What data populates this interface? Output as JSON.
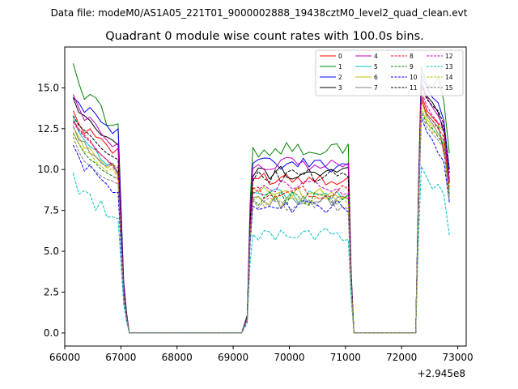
{
  "suptitle": "Data file: modeM0/AS1A05_221T01_9000002888_19438cztM0_level2_quad_clean.evt",
  "chart_data": {
    "type": "line",
    "title": "Quadrant 0 module wise count rates with 100.0s bins.",
    "xlabel": "",
    "ylabel": "",
    "x_offset_label": "+2.945e8",
    "xlim": [
      66000,
      73150
    ],
    "ylim": [
      -0.8,
      17.5
    ],
    "xticks": [
      66000,
      67000,
      68000,
      69000,
      70000,
      71000,
      72000,
      73000
    ],
    "yticks": [
      0.0,
      2.5,
      5.0,
      7.5,
      10.0,
      12.5,
      15.0
    ],
    "ytick_labels": [
      "0.0",
      "2.5",
      "5.0",
      "7.5",
      "10.0",
      "12.5",
      "15.0"
    ],
    "x": [
      66150,
      66250,
      66350,
      66450,
      66550,
      66650,
      66750,
      66850,
      66950,
      67050,
      67100,
      67150,
      67250,
      67350,
      67450,
      67550,
      67650,
      67750,
      67850,
      67950,
      68050,
      68150,
      68250,
      68350,
      68450,
      68550,
      68650,
      68750,
      68850,
      68950,
      69050,
      69150,
      69250,
      69300,
      69350,
      69450,
      69550,
      69650,
      69750,
      69850,
      69950,
      70050,
      70150,
      70250,
      70350,
      70450,
      70550,
      70650,
      70750,
      70850,
      70950,
      71050,
      71100,
      71150,
      71250,
      71350,
      71450,
      71550,
      71650,
      71750,
      71850,
      71950,
      72050,
      72150,
      72250,
      72300,
      72350,
      72450,
      72550,
      72650,
      72750,
      72850
    ],
    "legend_position": "top-right",
    "series": [
      {
        "name": "0",
        "color": "#ff0000",
        "dash": "solid",
        "base": [
          13.6,
          12.8,
          12.2,
          12.5,
          12.0,
          11.9,
          11.5,
          11.0,
          11.3
        ],
        "mid": 9.5,
        "end": [
          14.6,
          13.6,
          13.2,
          12.8,
          11.0,
          9.5
        ]
      },
      {
        "name": "1",
        "color": "#008000",
        "dash": "solid",
        "base": [
          16.5,
          15.3,
          14.3,
          14.6,
          14.4,
          13.9,
          12.7,
          12.7,
          12.8
        ],
        "mid": 11.2,
        "end": [
          16.3,
          15.2,
          15.0,
          15.7,
          14.2,
          11.0
        ]
      },
      {
        "name": "2",
        "color": "#0000ff",
        "dash": "solid",
        "base": [
          14.4,
          14.1,
          13.5,
          13.8,
          13.4,
          12.9,
          12.7,
          12.2,
          12.5
        ],
        "mid": 10.3,
        "end": [
          15.8,
          15.0,
          14.4,
          14.1,
          13.0,
          10.0
        ]
      },
      {
        "name": "3",
        "color": "#000000",
        "dash": "solid",
        "base": [
          14.4,
          13.5,
          13.3,
          13.0,
          12.5,
          12.1,
          12.0,
          11.8,
          11.5
        ],
        "mid": 9.8,
        "end": [
          15.2,
          14.5,
          14.1,
          13.5,
          12.3,
          9.2
        ]
      },
      {
        "name": "4",
        "color": "#c000c0",
        "dash": "solid",
        "base": [
          14.6,
          13.8,
          13.0,
          13.2,
          12.8,
          12.2,
          11.8,
          11.4,
          11.6
        ],
        "mid": 10.3,
        "end": [
          15.5,
          14.4,
          13.8,
          13.3,
          12.6,
          9.3
        ]
      },
      {
        "name": "5",
        "color": "#00c0c0",
        "dash": "solid",
        "base": [
          13.2,
          12.3,
          11.8,
          11.4,
          11.2,
          10.6,
          10.3,
          10.4,
          9.8
        ],
        "mid": 8.4,
        "end": [
          14.2,
          13.4,
          13.0,
          12.6,
          11.4,
          8.7
        ]
      },
      {
        "name": "6",
        "color": "#c0c000",
        "dash": "solid",
        "base": [
          12.6,
          12.0,
          11.3,
          11.3,
          10.8,
          10.5,
          10.1,
          10.3,
          9.6
        ],
        "mid": 8.5,
        "end": [
          14.3,
          13.1,
          12.6,
          12.7,
          12.3,
          8.1
        ]
      },
      {
        "name": "7",
        "color": "#808080",
        "dash": "solid",
        "base": [
          12.7,
          11.8,
          11.7,
          11.0,
          10.8,
          10.4,
          10.2,
          10.4,
          9.7
        ],
        "mid": 8.0,
        "end": [
          14.4,
          13.3,
          12.8,
          12.2,
          11.8,
          8.4
        ]
      },
      {
        "name": "8",
        "color": "#ff0000",
        "dash": "dashed",
        "base": [
          13.0,
          12.5,
          12.1,
          11.8,
          11.2,
          10.9,
          10.6,
          10.3,
          10.1
        ],
        "mid": 8.6,
        "end": [
          14.3,
          13.4,
          13.0,
          12.5,
          12.0,
          8.9
        ]
      },
      {
        "name": "9",
        "color": "#008000",
        "dash": "dashed",
        "base": [
          12.2,
          11.6,
          11.0,
          10.6,
          10.4,
          10.0,
          9.8,
          9.6,
          9.4
        ],
        "mid": 8.2,
        "end": [
          13.6,
          12.8,
          12.5,
          12.0,
          11.5,
          8.4
        ]
      },
      {
        "name": "10",
        "color": "#0000ff",
        "dash": "dashed",
        "base": [
          11.5,
          10.8,
          9.9,
          10.3,
          9.8,
          9.4,
          9.1,
          8.6,
          8.6
        ],
        "mid": 7.7,
        "end": [
          13.2,
          12.3,
          11.8,
          11.0,
          10.5,
          8.0
        ]
      },
      {
        "name": "11",
        "color": "#000000",
        "dash": "dashed",
        "base": [
          13.3,
          12.7,
          12.4,
          12.1,
          11.7,
          11.3,
          11.0,
          10.8,
          10.6
        ],
        "mid": 9.6,
        "end": [
          15.1,
          14.3,
          13.9,
          13.6,
          12.8,
          9.8
        ]
      },
      {
        "name": "12",
        "color": "#c000c0",
        "dash": "dashed",
        "base": [
          12.9,
          12.4,
          12.0,
          11.7,
          11.3,
          10.9,
          10.6,
          10.2,
          9.8
        ],
        "mid": 8.9,
        "end": [
          14.8,
          13.9,
          13.3,
          12.9,
          12.4,
          9.4
        ]
      },
      {
        "name": "13",
        "color": "#00c0c0",
        "dash": "dashed",
        "base": [
          9.8,
          8.5,
          8.7,
          8.5,
          7.5,
          8.1,
          7.1,
          7.1,
          7.0
        ],
        "mid": 6.0,
        "end": [
          10.2,
          9.5,
          8.8,
          9.1,
          8.5,
          6.0
        ]
      },
      {
        "name": "14",
        "color": "#c0c000",
        "dash": "dashed",
        "base": [
          12.3,
          11.6,
          11.1,
          11.0,
          10.5,
          10.2,
          9.9,
          10.1,
          9.4
        ],
        "mid": 8.1,
        "end": [
          13.8,
          12.9,
          12.3,
          12.2,
          11.6,
          8.2
        ]
      },
      {
        "name": "15",
        "color": "#808080",
        "dash": "dashed",
        "base": [
          12.0,
          11.1,
          10.5,
          10.2,
          9.9,
          9.6,
          9.4,
          9.3,
          9.1
        ],
        "mid": 7.9,
        "end": [
          13.4,
          12.6,
          12.2,
          11.8,
          11.3,
          8.1
        ]
      }
    ]
  }
}
